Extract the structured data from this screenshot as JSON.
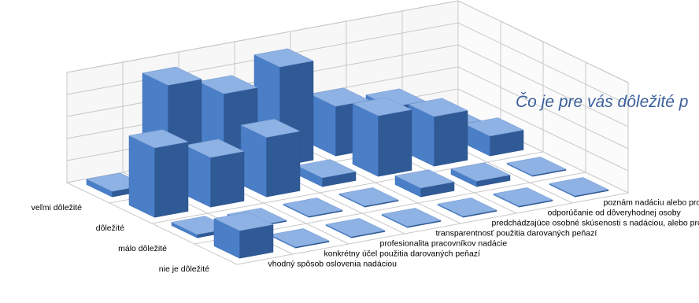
{
  "chart_data": {
    "type": "bar",
    "subtype": "3d-column",
    "title": "Čo je pre vás dôležité p",
    "categories": [
      "veľmi dôležité",
      "dôležité",
      "málo dôležité",
      "nie je dôležité"
    ],
    "series": [
      {
        "name": "vhodný spôsob oslovenia nadáciou",
        "values": [
          5,
          63,
          3,
          25
        ]
      },
      {
        "name": "konkrétny účel použitia darovaných peňazí",
        "values": [
          92,
          45,
          1,
          1
        ]
      },
      {
        "name": "profesionalita pracovníkov nadácie",
        "values": [
          75,
          54,
          1,
          1
        ]
      },
      {
        "name": "transparentnosť použitia darovaných peňazí",
        "values": [
          90,
          8,
          1,
          1
        ]
      },
      {
        "name": "predchádzajúce osobné skúsenosti s nadáciou, alebo projektom",
        "values": [
          45,
          55,
          8,
          1
        ]
      },
      {
        "name": "odporúčanie od dôveryhodnej osoby",
        "values": [
          35,
          45,
          5,
          1
        ]
      },
      {
        "name": "poznám nadáciu alebo projekt z novín, rozhlasu alebo televízie",
        "values": [
          8,
          18,
          1,
          1
        ]
      }
    ],
    "ylim": [
      0,
      100
    ],
    "grid": true,
    "legend": "none",
    "colors": {
      "bar_front": "#4a7fc8",
      "bar_side": "#2f5a96",
      "bar_top": "#8fb2e4",
      "grid": "#c8c8c8"
    }
  }
}
